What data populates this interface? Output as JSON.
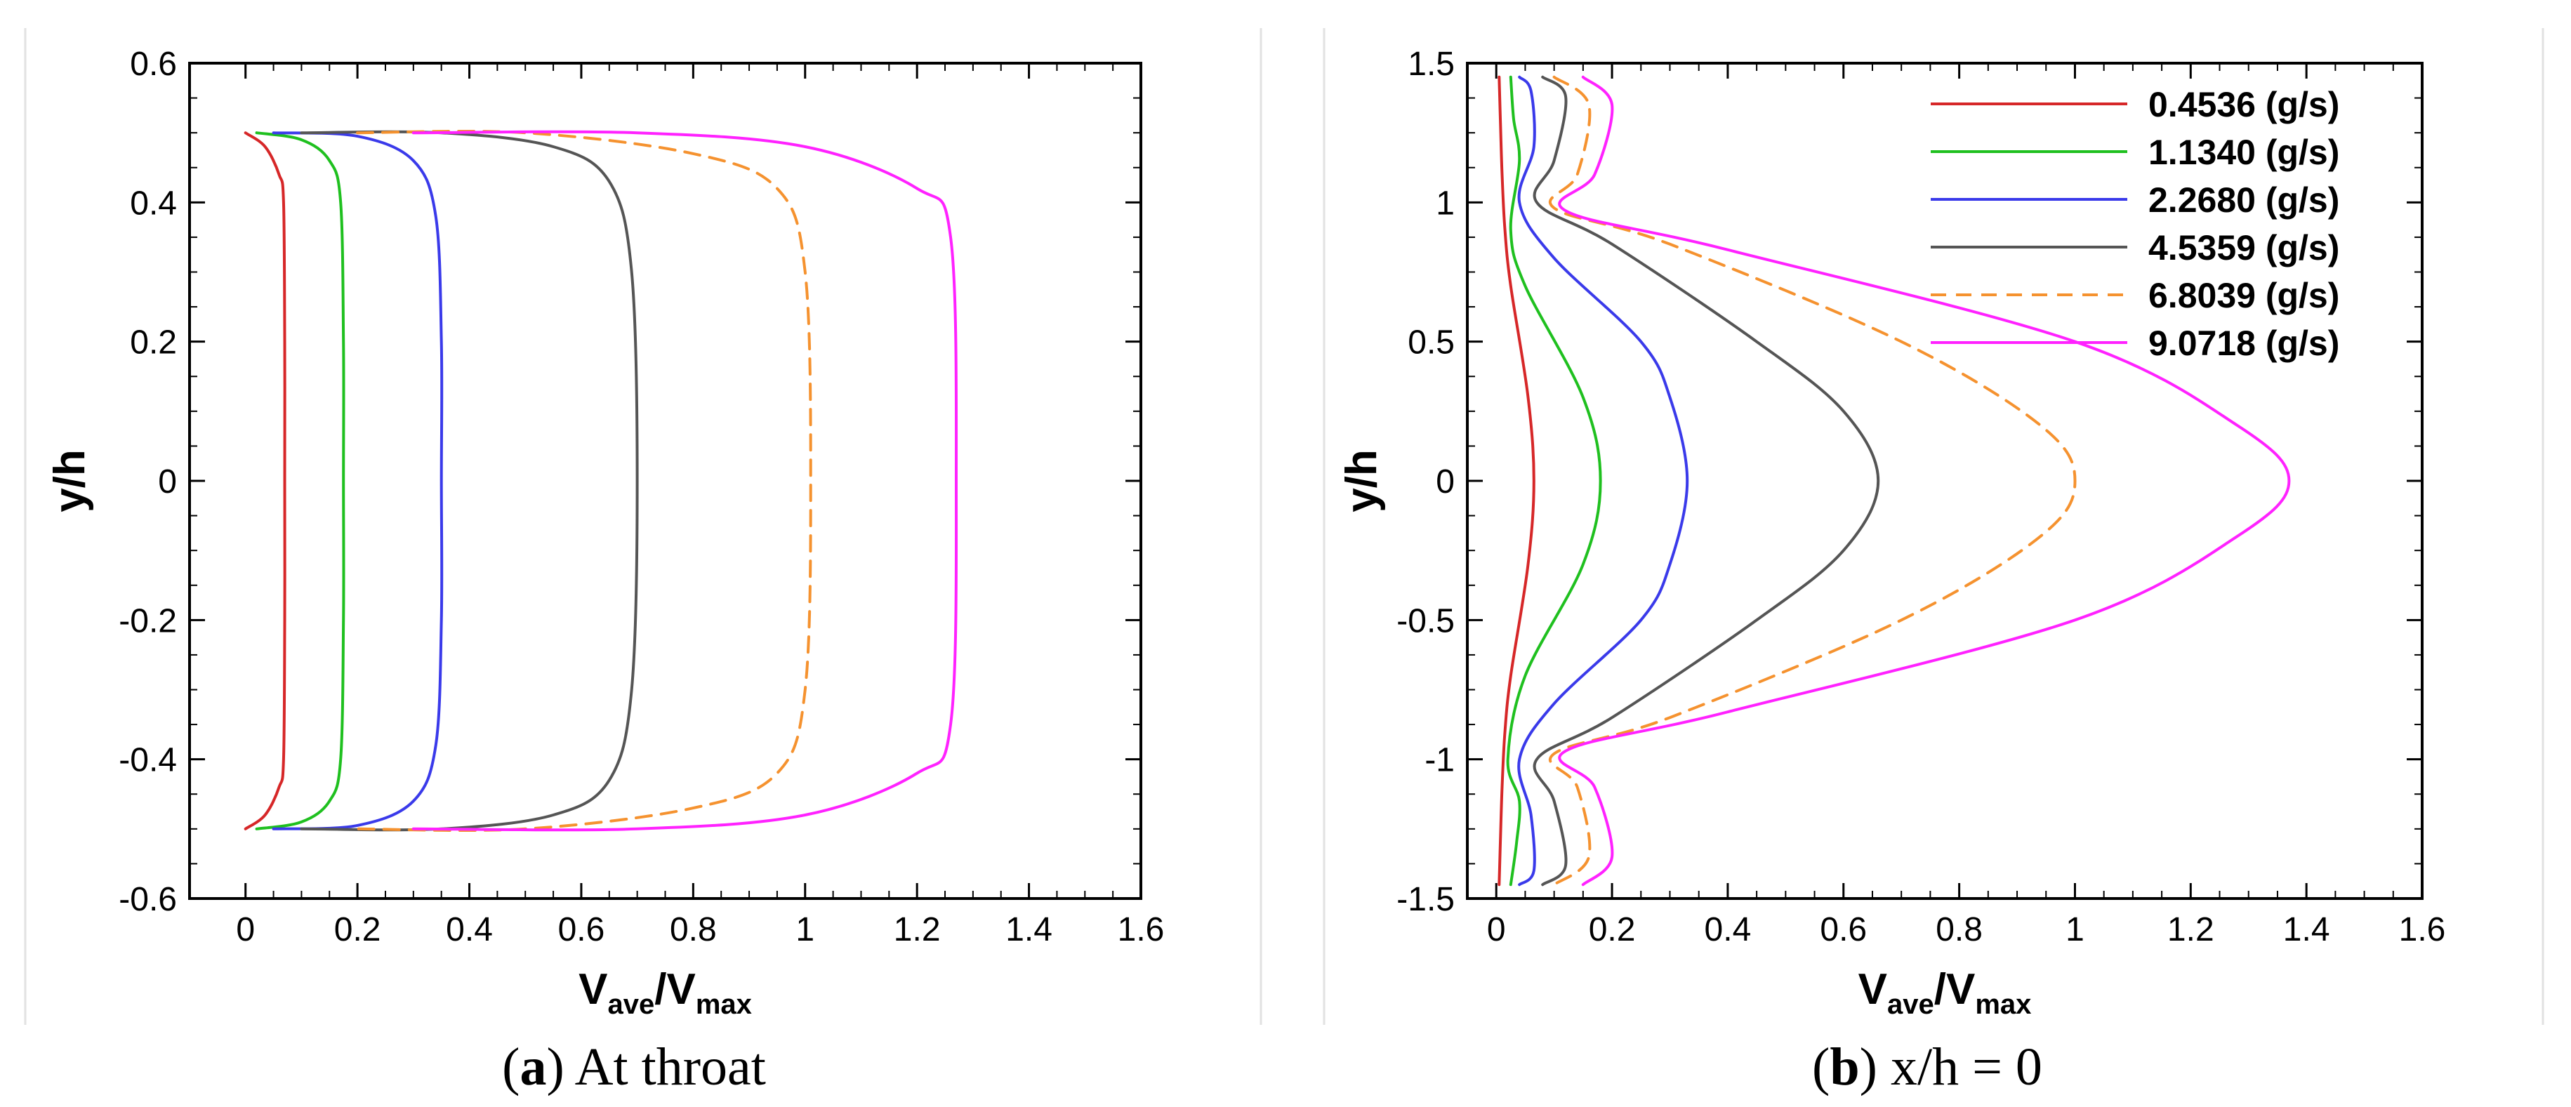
{
  "chart_data": [
    {
      "type": "line",
      "panel": "a",
      "caption": {
        "letter": "a",
        "text": "At throat"
      },
      "xlabel": {
        "main": "V",
        "sub1": "ave",
        "slash": "/V",
        "sub2": "max"
      },
      "ylabel": "y/h",
      "xlim": [
        -0.1,
        1.6
      ],
      "ylim": [
        -0.6,
        0.6
      ],
      "xticks": [
        "0",
        "0.2",
        "0.4",
        "0.6",
        "0.8",
        "1",
        "1.2",
        "1.4",
        "1.6"
      ],
      "yticks": [
        "-0.6",
        "-0.4",
        "-0.2",
        "0",
        "0.2",
        "0.4",
        "0.6"
      ],
      "series": [
        {
          "name": "0.4536 (g/s)",
          "color": "#d62728",
          "dash": false,
          "x": [
            0.0,
            0.035,
            0.06,
            0.068,
            0.07,
            0.07,
            0.07,
            0.068,
            0.06,
            0.035,
            0.0
          ],
          "y": [
            0.5,
            0.48,
            0.44,
            0.4,
            0.2,
            0.0,
            -0.2,
            -0.4,
            -0.44,
            -0.48,
            -0.5
          ]
        },
        {
          "name": "1.1340 (g/s)",
          "color": "#1fc01f",
          "dash": false,
          "x": [
            0.02,
            0.1,
            0.15,
            0.17,
            0.175,
            0.175,
            0.175,
            0.17,
            0.15,
            0.1,
            0.02
          ],
          "y": [
            0.5,
            0.49,
            0.46,
            0.4,
            0.2,
            0.0,
            -0.2,
            -0.4,
            -0.46,
            -0.49,
            -0.5
          ]
        },
        {
          "name": "2.2680 (g/s)",
          "color": "#3a3aea",
          "dash": false,
          "x": [
            0.05,
            0.2,
            0.3,
            0.34,
            0.35,
            0.35,
            0.35,
            0.34,
            0.3,
            0.2,
            0.05
          ],
          "y": [
            0.5,
            0.495,
            0.46,
            0.38,
            0.2,
            0.0,
            -0.2,
            -0.38,
            -0.46,
            -0.495,
            -0.5
          ]
        },
        {
          "name": "4.5359 (g/s)",
          "color": "#555555",
          "dash": false,
          "x": [
            0.1,
            0.35,
            0.55,
            0.65,
            0.69,
            0.7,
            0.69,
            0.65,
            0.55,
            0.35,
            0.1
          ],
          "y": [
            0.5,
            0.5,
            0.48,
            0.43,
            0.3,
            0.0,
            -0.3,
            -0.43,
            -0.48,
            -0.5,
            -0.5
          ]
        },
        {
          "name": "6.8039 (g/s)",
          "color": "#f5922f",
          "dash": true,
          "x": [
            0.2,
            0.5,
            0.8,
            0.95,
            1.0,
            1.01,
            1.0,
            0.95,
            0.8,
            0.5,
            0.2
          ],
          "y": [
            0.5,
            0.5,
            0.47,
            0.42,
            0.3,
            0.0,
            -0.3,
            -0.42,
            -0.47,
            -0.5,
            -0.5
          ]
        },
        {
          "name": "9.0718 (g/s)",
          "color": "#ff22ff",
          "dash": false,
          "x": [
            0.3,
            0.7,
            1.0,
            1.2,
            1.26,
            1.27,
            1.26,
            1.2,
            1.0,
            0.7,
            0.3
          ],
          "y": [
            0.5,
            0.5,
            0.48,
            0.42,
            0.35,
            0.0,
            -0.35,
            -0.42,
            -0.48,
            -0.5,
            -0.5
          ]
        }
      ]
    },
    {
      "type": "line",
      "panel": "b",
      "caption": {
        "letter": "b",
        "text": "x/h = 0"
      },
      "xlabel": {
        "main": "V",
        "sub1": "ave",
        "slash": "/V",
        "sub2": "max"
      },
      "ylabel": "y/h",
      "xlim": [
        -0.05,
        1.6
      ],
      "ylim": [
        -1.5,
        1.5
      ],
      "xticks": [
        "0",
        "0.2",
        "0.4",
        "0.6",
        "0.8",
        "1",
        "1.2",
        "1.4",
        "1.6"
      ],
      "yticks": [
        "-1.5",
        "-1",
        "-0.5",
        "0",
        "0.5",
        "1",
        "1.5"
      ],
      "legend": {
        "position": "top-right"
      },
      "series": [
        {
          "name": "0.4536 (g/s)",
          "color": "#d62728",
          "dash": false,
          "x": [
            0.005,
            0.007,
            0.01,
            0.015,
            0.025,
            0.055,
            0.065,
            0.055,
            0.025,
            0.015,
            0.01,
            0.007,
            0.005
          ],
          "y": [
            1.45,
            1.3,
            1.1,
            0.9,
            0.7,
            0.3,
            0.0,
            -0.3,
            -0.7,
            -0.9,
            -1.1,
            -1.3,
            -1.45
          ]
        },
        {
          "name": "1.1340 (g/s)",
          "color": "#1fc01f",
          "dash": false,
          "x": [
            0.025,
            0.03,
            0.04,
            0.025,
            0.05,
            0.15,
            0.18,
            0.15,
            0.05,
            0.02,
            0.04,
            0.035,
            0.025
          ],
          "y": [
            1.45,
            1.3,
            1.15,
            0.9,
            0.7,
            0.3,
            0.0,
            -0.3,
            -0.7,
            -1.0,
            -1.15,
            -1.3,
            -1.45
          ]
        },
        {
          "name": "2.2680 (g/s)",
          "color": "#3a3aea",
          "dash": false,
          "x": [
            0.04,
            0.06,
            0.065,
            0.04,
            0.1,
            0.25,
            0.3,
            0.33,
            0.3,
            0.25,
            0.1,
            0.04,
            0.06,
            0.065,
            0.04
          ],
          "y": [
            1.45,
            1.4,
            1.2,
            1.0,
            0.8,
            0.5,
            0.3,
            0.0,
            -0.3,
            -0.5,
            -0.8,
            -1.0,
            -1.2,
            -1.4,
            -1.45
          ]
        },
        {
          "name": "4.5359 (g/s)",
          "color": "#555555",
          "dash": false,
          "x": [
            0.08,
            0.12,
            0.1,
            0.07,
            0.2,
            0.45,
            0.6,
            0.66,
            0.6,
            0.45,
            0.2,
            0.07,
            0.1,
            0.12,
            0.08
          ],
          "y": [
            1.45,
            1.38,
            1.15,
            1.0,
            0.85,
            0.5,
            0.25,
            0.0,
            -0.25,
            -0.5,
            -0.85,
            -1.0,
            -1.15,
            -1.38,
            -1.45
          ]
        },
        {
          "name": "6.8039 (g/s)",
          "color": "#f5922f",
          "dash": true,
          "x": [
            0.1,
            0.16,
            0.14,
            0.1,
            0.3,
            0.7,
            0.94,
            1.0,
            0.94,
            0.7,
            0.3,
            0.1,
            0.14,
            0.16,
            0.1
          ],
          "y": [
            1.45,
            1.35,
            1.1,
            0.98,
            0.85,
            0.5,
            0.2,
            0.0,
            -0.2,
            -0.5,
            -0.85,
            -0.98,
            -1.1,
            -1.35,
            -1.45
          ]
        },
        {
          "name": "9.0718 (g/s)",
          "color": "#ff22ff",
          "dash": false,
          "x": [
            0.15,
            0.2,
            0.17,
            0.12,
            0.4,
            1.0,
            1.28,
            1.37,
            1.28,
            1.0,
            0.4,
            0.12,
            0.17,
            0.2,
            0.15
          ],
          "y": [
            1.45,
            1.35,
            1.1,
            0.97,
            0.83,
            0.5,
            0.2,
            0.0,
            -0.2,
            -0.5,
            -0.83,
            -0.97,
            -1.1,
            -1.35,
            -1.45
          ]
        }
      ]
    }
  ]
}
